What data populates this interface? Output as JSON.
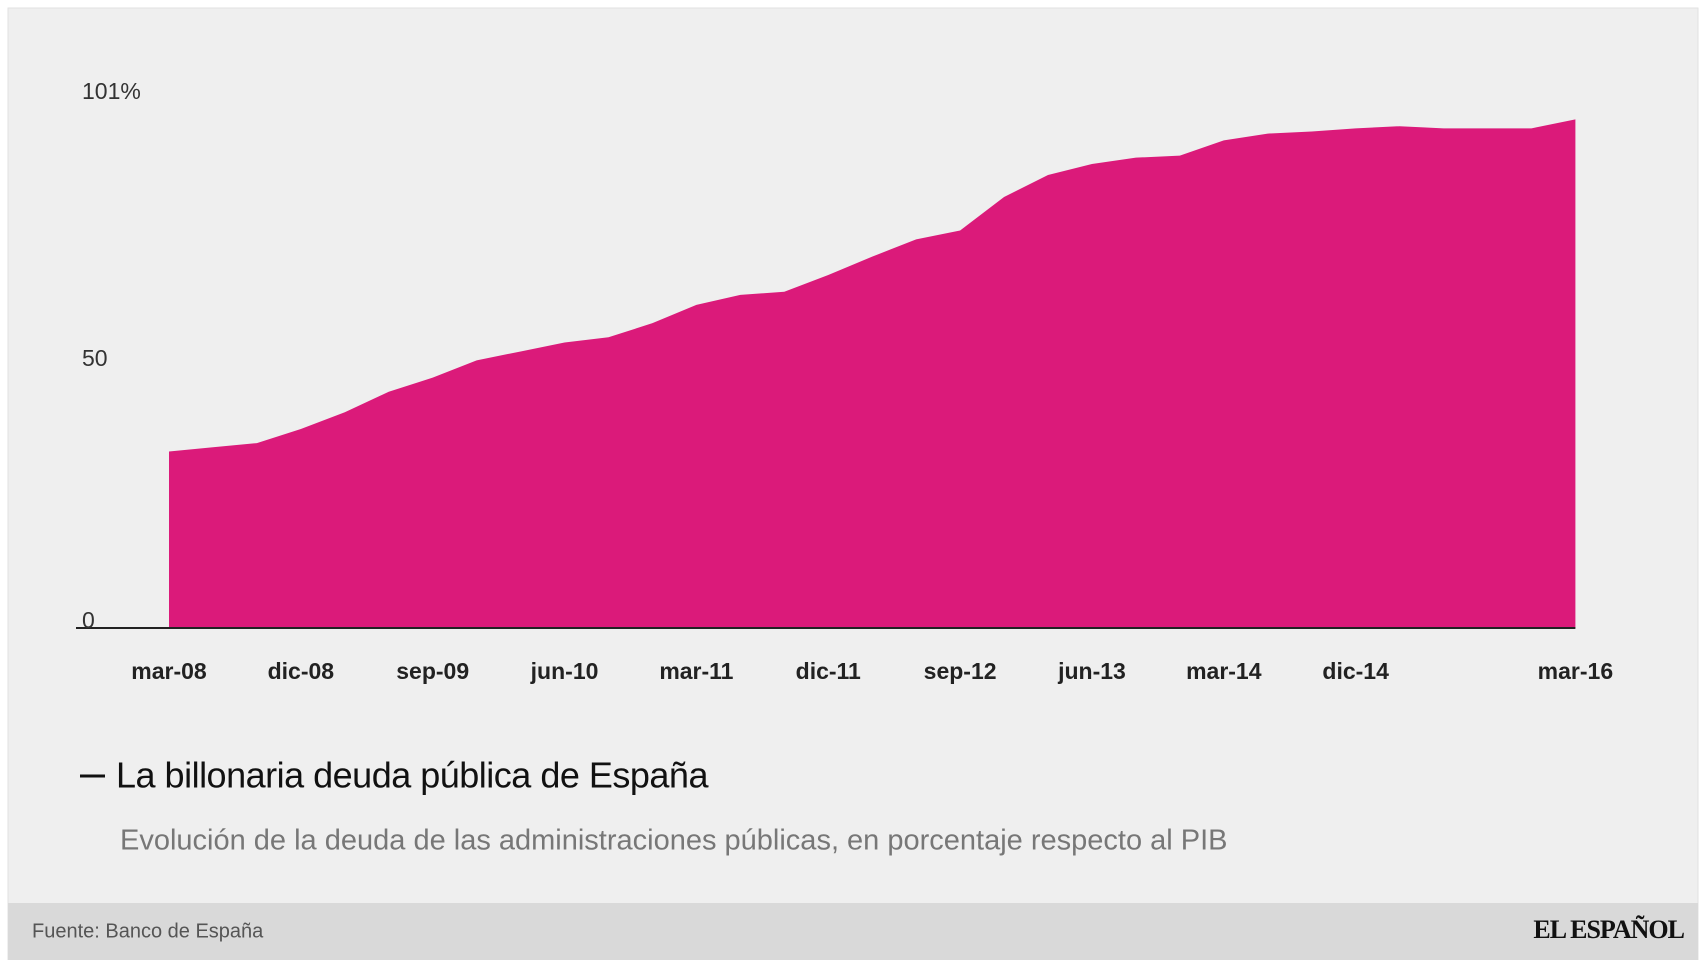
{
  "chart_data": {
    "type": "area",
    "title": "La billonaria deuda pública de España",
    "subtitle": "Evolución de la deuda de las administraciones públicas, en porcentaje respecto al PIB",
    "source": "Fuente: Banco de España",
    "brand": "EL ESPAÑOL",
    "color": "#db1a7a",
    "categories": [
      "mar-08",
      null,
      null,
      "dic-08",
      null,
      null,
      "sep-09",
      null,
      null,
      "jun-10",
      null,
      null,
      "mar-11",
      null,
      null,
      "dic-11",
      null,
      null,
      "sep-12",
      null,
      null,
      "jun-13",
      null,
      null,
      "mar-14",
      null,
      null,
      "dic-14",
      null,
      null,
      null,
      null,
      "mar-16"
    ],
    "values": [
      33.7,
      34.5,
      35.3,
      38.0,
      41.2,
      45.1,
      47.8,
      51.1,
      52.8,
      54.5,
      55.5,
      58.2,
      61.7,
      63.6,
      64.2,
      67.4,
      70.9,
      74.2,
      75.9,
      82.3,
      86.5,
      88.6,
      89.8,
      90.2,
      93.1,
      94.4,
      94.8,
      95.4,
      95.8,
      95.4,
      95.4,
      95.4,
      97.1
    ],
    "ylim": [
      0,
      101
    ],
    "yticks": [
      0,
      50,
      {
        "value": 101,
        "label": "101%"
      }
    ],
    "grid": false
  }
}
